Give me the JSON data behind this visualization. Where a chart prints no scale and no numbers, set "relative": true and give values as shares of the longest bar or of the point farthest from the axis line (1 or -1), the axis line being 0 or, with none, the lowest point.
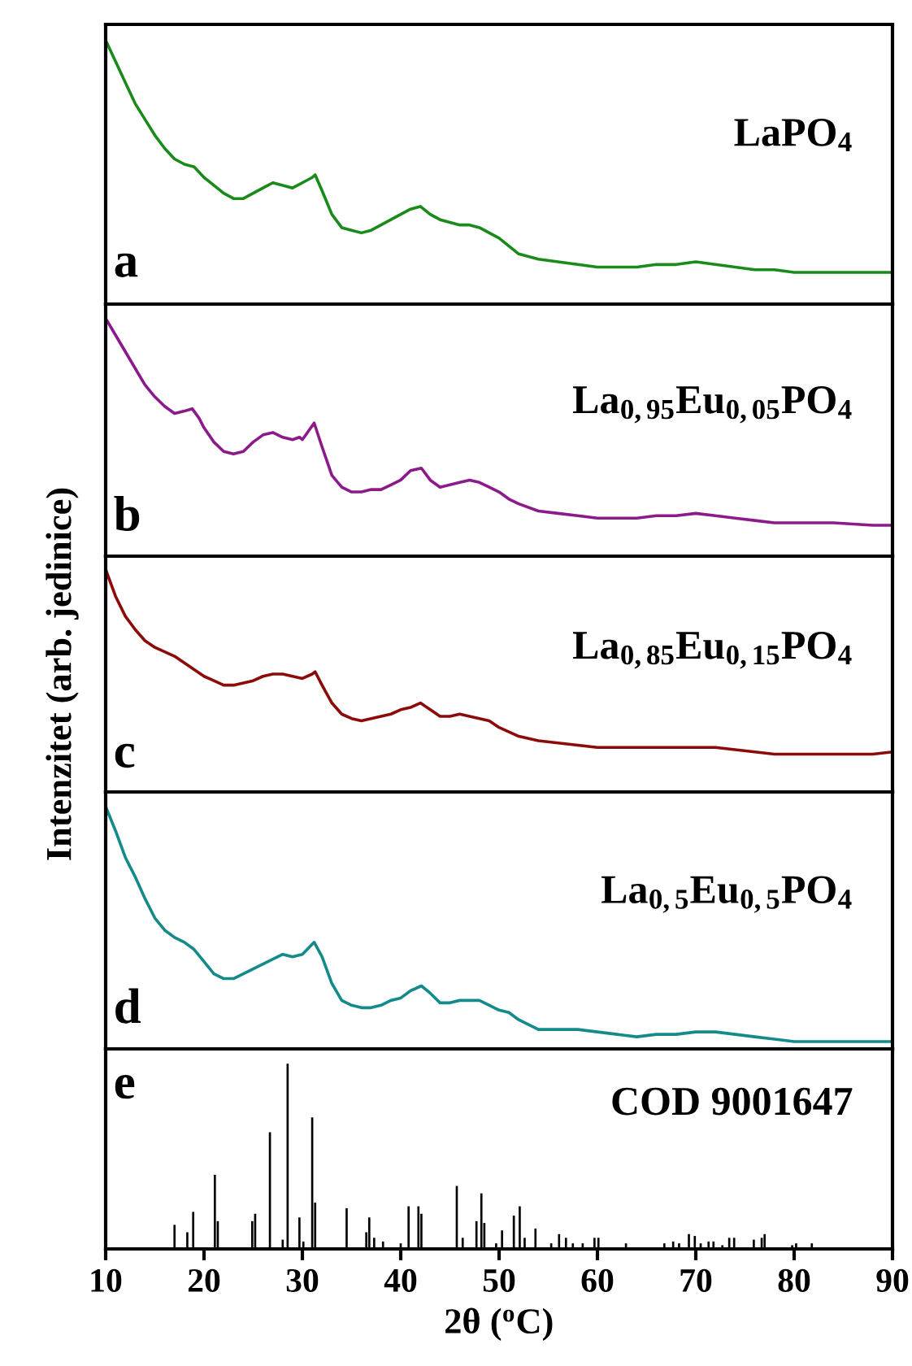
{
  "chart_data": [
    {
      "type": "line",
      "relative": true,
      "xlim": [
        10,
        90
      ],
      "tick_labels": false,
      "annotations": [
        "a",
        "LaPO$_{4}$"
      ],
      "series": [
        {
          "color": "#1a8a1a",
          "x": [
            10,
            11,
            12,
            13,
            14,
            15,
            16,
            17,
            18,
            19,
            20,
            21,
            22,
            23,
            24,
            25,
            26,
            27,
            28,
            29,
            30,
            31,
            31.3,
            32,
            33,
            34,
            35,
            36,
            37,
            38,
            39,
            40,
            41,
            42,
            43,
            44,
            45,
            46,
            47,
            48,
            49,
            50,
            51,
            52,
            54,
            56,
            58,
            60,
            62,
            64,
            66,
            68,
            70,
            72,
            74,
            76,
            78,
            80,
            84,
            88,
            90
          ],
          "values": [
            1.0,
            0.92,
            0.84,
            0.76,
            0.7,
            0.64,
            0.59,
            0.55,
            0.53,
            0.52,
            0.48,
            0.45,
            0.42,
            0.4,
            0.4,
            0.42,
            0.44,
            0.46,
            0.45,
            0.44,
            0.46,
            0.48,
            0.49,
            0.43,
            0.34,
            0.29,
            0.28,
            0.27,
            0.28,
            0.3,
            0.32,
            0.34,
            0.36,
            0.37,
            0.34,
            0.32,
            0.31,
            0.3,
            0.3,
            0.29,
            0.27,
            0.25,
            0.22,
            0.19,
            0.17,
            0.16,
            0.15,
            0.14,
            0.14,
            0.14,
            0.15,
            0.15,
            0.16,
            0.15,
            0.14,
            0.13,
            0.13,
            0.12,
            0.12,
            0.12,
            0.12
          ]
        }
      ]
    },
    {
      "type": "line",
      "relative": true,
      "xlim": [
        10,
        90
      ],
      "tick_labels": false,
      "annotations": [
        "b",
        "La$_{0,95}$Eu$_{0,05}$PO$_{4}$"
      ],
      "series": [
        {
          "color": "#8b1a8b",
          "x": [
            10,
            11,
            12,
            13,
            14,
            15,
            16,
            17,
            18,
            18.8,
            19.5,
            20,
            21,
            22,
            23,
            24,
            25,
            26,
            27,
            28,
            29,
            29.7,
            30,
            31.2,
            32,
            33,
            34,
            35,
            36,
            37,
            38,
            39,
            40,
            41,
            42.1,
            43,
            44,
            45,
            46,
            47,
            48,
            49,
            50,
            51,
            52,
            54,
            56,
            58,
            60,
            62,
            64,
            66,
            68,
            70,
            72,
            74,
            76,
            78,
            80,
            84,
            88,
            90
          ],
          "values": [
            1.0,
            0.93,
            0.86,
            0.79,
            0.72,
            0.67,
            0.63,
            0.6,
            0.61,
            0.62,
            0.58,
            0.54,
            0.48,
            0.44,
            0.43,
            0.44,
            0.48,
            0.51,
            0.52,
            0.5,
            0.49,
            0.5,
            0.49,
            0.56,
            0.46,
            0.34,
            0.29,
            0.27,
            0.27,
            0.28,
            0.28,
            0.3,
            0.32,
            0.36,
            0.37,
            0.32,
            0.29,
            0.3,
            0.31,
            0.32,
            0.31,
            0.29,
            0.27,
            0.24,
            0.22,
            0.19,
            0.18,
            0.17,
            0.16,
            0.16,
            0.16,
            0.17,
            0.17,
            0.18,
            0.17,
            0.16,
            0.15,
            0.14,
            0.14,
            0.14,
            0.13,
            0.13
          ]
        }
      ]
    },
    {
      "type": "line",
      "relative": true,
      "xlim": [
        10,
        90
      ],
      "tick_labels": false,
      "ylabel": "Intenzitet (arb. jedinice)",
      "annotations": [
        "c",
        "La$_{0,85}$Eu$_{0,15}$PO$_{4}$"
      ],
      "series": [
        {
          "color": "#8b0a0a",
          "x": [
            10,
            11,
            12,
            13,
            14,
            15,
            16,
            17,
            18,
            19,
            20,
            21,
            22,
            23,
            24,
            25,
            26,
            27,
            28,
            29,
            30,
            31,
            31.3,
            32,
            33,
            34,
            35,
            36,
            37,
            38,
            39,
            40,
            41,
            42,
            43,
            44,
            45,
            46,
            47,
            48,
            49,
            50,
            51,
            52,
            54,
            56,
            58,
            60,
            62,
            64,
            66,
            68,
            70,
            72,
            74,
            76,
            78,
            80,
            84,
            88,
            90
          ],
          "values": [
            1.0,
            0.88,
            0.79,
            0.73,
            0.68,
            0.65,
            0.63,
            0.61,
            0.58,
            0.55,
            0.52,
            0.5,
            0.48,
            0.48,
            0.49,
            0.5,
            0.52,
            0.53,
            0.53,
            0.52,
            0.51,
            0.53,
            0.54,
            0.48,
            0.4,
            0.35,
            0.33,
            0.32,
            0.33,
            0.34,
            0.35,
            0.37,
            0.38,
            0.4,
            0.37,
            0.34,
            0.34,
            0.35,
            0.34,
            0.33,
            0.32,
            0.29,
            0.27,
            0.25,
            0.23,
            0.22,
            0.21,
            0.2,
            0.2,
            0.2,
            0.2,
            0.2,
            0.2,
            0.2,
            0.19,
            0.18,
            0.17,
            0.17,
            0.17,
            0.17,
            0.18
          ]
        }
      ]
    },
    {
      "type": "line",
      "relative": true,
      "xlim": [
        10,
        90
      ],
      "tick_labels": false,
      "annotations": [
        "d",
        "La$_{0,5}$Eu$_{0,5}$PO$_{4}$"
      ],
      "series": [
        {
          "color": "#148a8a",
          "x": [
            10,
            11,
            12,
            13,
            14,
            15,
            16,
            17,
            18,
            19,
            20,
            21,
            22,
            23,
            24,
            25,
            26,
            27,
            28,
            29,
            30,
            31.2,
            32,
            33,
            34,
            35,
            36,
            37,
            38,
            39,
            40,
            41,
            42.1,
            43,
            44,
            45,
            46,
            47,
            48,
            49,
            50,
            51,
            52,
            54,
            56,
            58,
            60,
            62,
            64,
            66,
            68,
            70,
            72,
            74,
            76,
            78,
            80,
            84,
            88,
            90
          ],
          "values": [
            1.0,
            0.9,
            0.79,
            0.71,
            0.62,
            0.54,
            0.49,
            0.46,
            0.44,
            0.41,
            0.36,
            0.31,
            0.29,
            0.29,
            0.31,
            0.33,
            0.35,
            0.37,
            0.39,
            0.38,
            0.39,
            0.44,
            0.38,
            0.27,
            0.2,
            0.18,
            0.17,
            0.17,
            0.18,
            0.2,
            0.21,
            0.24,
            0.26,
            0.23,
            0.19,
            0.19,
            0.2,
            0.2,
            0.2,
            0.18,
            0.16,
            0.15,
            0.12,
            0.08,
            0.08,
            0.08,
            0.07,
            0.06,
            0.05,
            0.06,
            0.06,
            0.07,
            0.07,
            0.06,
            0.05,
            0.04,
            0.03,
            0.03,
            0.03,
            0.03
          ]
        }
      ]
    },
    {
      "type": "bar",
      "relative": true,
      "xlim": [
        10,
        90
      ],
      "xticks": [
        10,
        20,
        30,
        40,
        50,
        60,
        70,
        80,
        90
      ],
      "tick_labels": "x",
      "xlabel": "2θ ($^{o}$C)",
      "annotations": [
        "e",
        "COD 9001647"
      ],
      "series": [
        {
          "color": "#000000",
          "x": [
            17.0,
            18.3,
            18.9,
            21.1,
            21.4,
            24.9,
            25.2,
            26.7,
            28.0,
            28.5,
            29.7,
            30.1,
            31.0,
            31.3,
            34.5,
            36.5,
            36.8,
            37.3,
            38.2,
            40.0,
            40.8,
            41.8,
            42.1,
            43.0,
            45.7,
            46.3,
            47.7,
            48.2,
            48.5,
            49.7,
            50.3,
            51.5,
            52.1,
            52.6,
            53.7,
            55.3,
            56.1,
            56.8,
            57.5,
            58.5,
            59.7,
            60.1,
            62.9,
            63.4,
            65.7,
            66.8,
            67.7,
            68.3,
            69.3,
            69.9,
            70.5,
            71.3,
            71.8,
            72.7,
            73.4,
            73.9,
            75.9,
            76.7,
            77.0,
            79.8,
            80.2,
            81.8
          ],
          "values": [
            0.13,
            0.09,
            0.2,
            0.4,
            0.15,
            0.15,
            0.19,
            0.63,
            0.05,
            1.0,
            0.17,
            0.04,
            0.71,
            0.25,
            0.22,
            0.09,
            0.17,
            0.06,
            0.04,
            0.03,
            0.23,
            0.23,
            0.19,
            null,
            0.34,
            0.06,
            0.15,
            0.3,
            0.14,
            0.03,
            0.1,
            0.18,
            0.23,
            0.06,
            0.11,
            0.03,
            0.08,
            0.06,
            0.03,
            0.03,
            0.06,
            0.06,
            0.03,
            null,
            null,
            0.03,
            0.04,
            0.03,
            0.08,
            0.07,
            0.03,
            0.04,
            0.04,
            0.02,
            0.06,
            0.06,
            0.05,
            0.06,
            0.08,
            0.02,
            0.03,
            0.03
          ]
        }
      ]
    }
  ]
}
